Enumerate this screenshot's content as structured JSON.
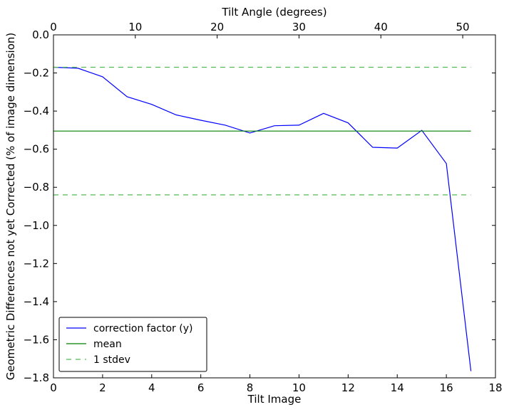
{
  "chart_data": {
    "type": "line",
    "title": "",
    "xlabel": "Tilt Image",
    "ylabel": "Geometric Differences not yet Corrected (% of image dimension)",
    "x2label": "Tilt Angle (degrees)",
    "xlim": [
      0,
      18
    ],
    "ylim": [
      -1.8,
      0.0
    ],
    "x2lim": [
      0,
      54
    ],
    "xticks": [
      0,
      2,
      4,
      6,
      8,
      10,
      12,
      14,
      16,
      18
    ],
    "yticks": [
      0.0,
      -0.2,
      -0.4,
      -0.6,
      -0.8,
      -1.0,
      -1.2,
      -1.4,
      -1.6,
      -1.8
    ],
    "x2ticks": [
      0,
      10,
      20,
      30,
      40,
      50
    ],
    "xtick_labels": [
      "0",
      "2",
      "4",
      "6",
      "8",
      "10",
      "12",
      "14",
      "16",
      "18"
    ],
    "ytick_labels": [
      "0.0",
      "−0.2",
      "−0.4",
      "−0.6",
      "−0.8",
      "−1.0",
      "−1.2",
      "−1.4",
      "−1.6",
      "−1.8"
    ],
    "x2tick_labels": [
      "0",
      "10",
      "20",
      "30",
      "40",
      "50"
    ],
    "grid": false,
    "legend_position": "bottom-left",
    "series": [
      {
        "name": "correction factor (y)",
        "color": "#0000ff",
        "style": "solid",
        "x": [
          0,
          1,
          2,
          3,
          4,
          5,
          6,
          7,
          8,
          9,
          10,
          11,
          12,
          13,
          14,
          15,
          16,
          17
        ],
        "y": [
          -0.17,
          -0.175,
          -0.22,
          -0.325,
          -0.365,
          -0.42,
          -0.448,
          -0.474,
          -0.515,
          -0.477,
          -0.474,
          -0.412,
          -0.462,
          -0.59,
          -0.594,
          -0.501,
          -0.675,
          -1.765
        ]
      },
      {
        "name": "mean",
        "color": "#008000",
        "style": "solid",
        "x": [
          0,
          17
        ],
        "y": [
          -0.505,
          -0.505
        ]
      },
      {
        "name": "1 stdev",
        "color": "#55bb55",
        "style": "dashed",
        "x": [
          0,
          17
        ],
        "y": [
          -0.17,
          -0.17
        ]
      },
      {
        "name": "",
        "color": "#55bb55",
        "style": "dashed",
        "x": [
          0,
          17
        ],
        "y": [
          -0.84,
          -0.84
        ]
      }
    ]
  }
}
